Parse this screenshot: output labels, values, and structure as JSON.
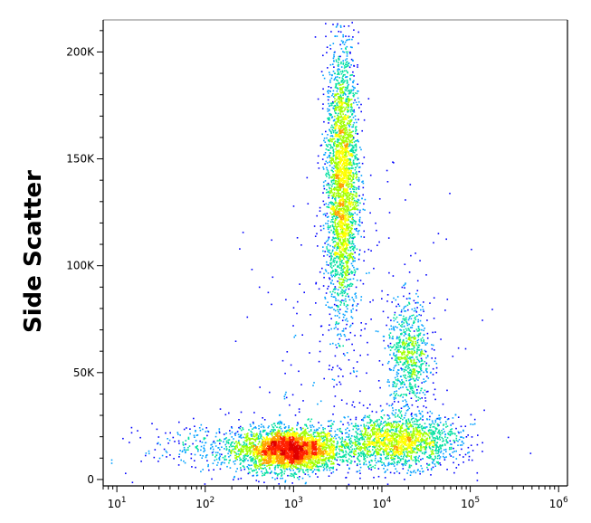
{
  "chart_data": {
    "type": "scatter",
    "title": "",
    "xlabel": "",
    "ylabel": "Side Scatter",
    "x_scale": "log",
    "xlim": [
      7,
      1260000
    ],
    "ylim": [
      -3000,
      215000
    ],
    "x_ticks": [
      {
        "value": 10,
        "base": "10",
        "exp": "1"
      },
      {
        "value": 100,
        "base": "10",
        "exp": "2"
      },
      {
        "value": 1000,
        "base": "10",
        "exp": "3"
      },
      {
        "value": 10000,
        "base": "10",
        "exp": "4"
      },
      {
        "value": 100000,
        "base": "10",
        "exp": "5"
      },
      {
        "value": 1000000,
        "base": "10",
        "exp": "6"
      }
    ],
    "y_ticks": [
      {
        "value": 0,
        "label": "0"
      },
      {
        "value": 50000,
        "label": "50K"
      },
      {
        "value": 100000,
        "label": "100K"
      },
      {
        "value": 150000,
        "label": "150K"
      },
      {
        "value": 200000,
        "label": "200K"
      }
    ],
    "grid": false,
    "legend": "none",
    "density_colors": [
      "#0000ff",
      "#00a0ff",
      "#00e0a0",
      "#a0ff00",
      "#ffff00",
      "#ffa000",
      "#ff2000",
      "#e00000"
    ],
    "populations": [
      {
        "x_center": 900,
        "y_center": 14000,
        "x_spread_decades": 0.28,
        "y_spread": 5000,
        "share": 0.34
      },
      {
        "x_center": 15000,
        "y_center": 18000,
        "x_spread_decades": 0.35,
        "y_spread": 6000,
        "share": 0.2
      },
      {
        "x_center": 3500,
        "y_center": 140000,
        "x_spread_decades": 0.09,
        "y_spread": 32000,
        "share": 0.31
      },
      {
        "x_center": 20000,
        "y_center": 58000,
        "x_spread_decades": 0.12,
        "y_spread": 13000,
        "share": 0.08
      },
      {
        "x_center": 150,
        "y_center": 15000,
        "x_spread_decades": 0.45,
        "y_spread": 6000,
        "share": 0.04
      },
      {
        "x_center": 5000,
        "y_center": 60000,
        "x_spread_decades": 0.6,
        "y_spread": 40000,
        "share": 0.03
      }
    ]
  }
}
